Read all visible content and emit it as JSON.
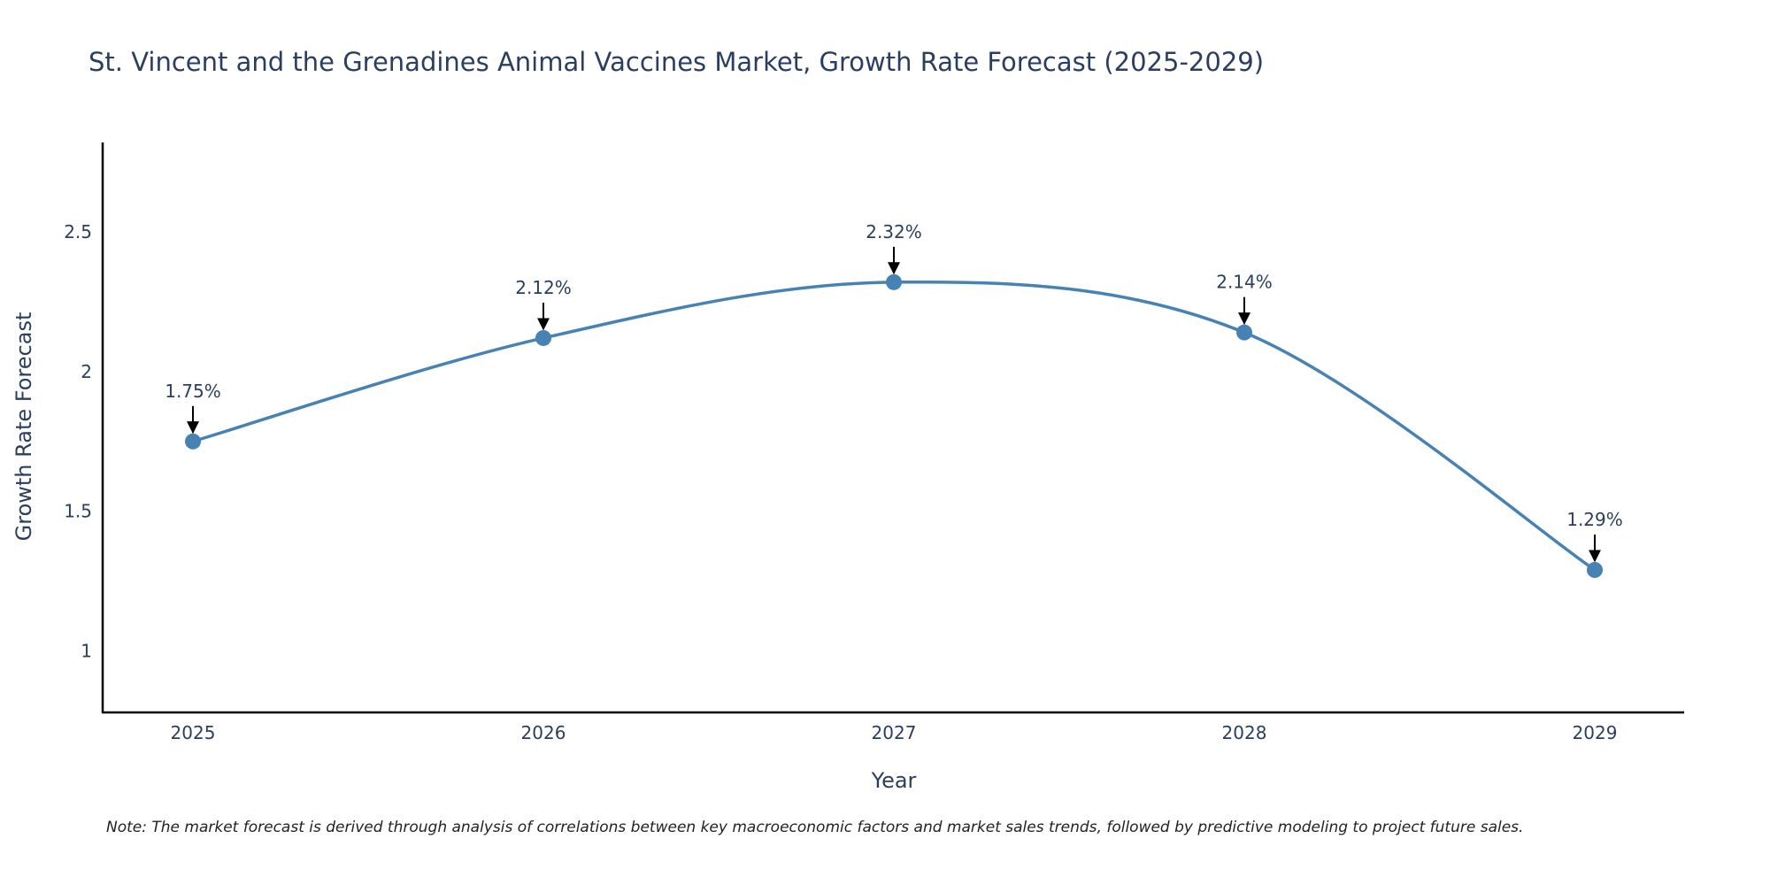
{
  "chart_data": {
    "type": "line",
    "title": "St. Vincent and the Grenadines Animal Vaccines Market, Growth Rate Forecast (2025-2029)",
    "xlabel": "Year",
    "ylabel": "Growth Rate Forecast",
    "categories": [
      "2025",
      "2026",
      "2027",
      "2028",
      "2029"
    ],
    "values": [
      1.75,
      2.12,
      2.32,
      2.14,
      1.29
    ],
    "data_labels": [
      "1.75%",
      "2.12%",
      "2.32%",
      "2.14%",
      "1.29%"
    ],
    "ylim": [
      0.78,
      2.82
    ],
    "yticks": [
      1,
      1.5,
      2,
      2.5
    ],
    "ytick_labels": [
      "1",
      "1.5",
      "2",
      "2.5"
    ],
    "grid": false,
    "line_color": "#4682b4",
    "annotation_arrow_color": "#000000",
    "note": "Note: The market forecast is derived through analysis of correlations between key macroeconomic factors and market sales trends, followed by predictive modeling to project future sales."
  }
}
